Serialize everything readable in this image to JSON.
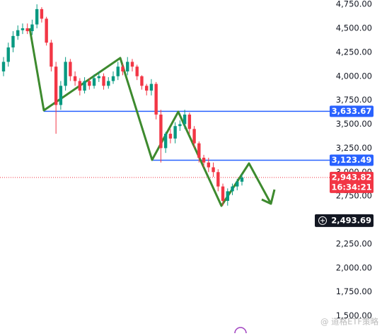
{
  "chart_data": {
    "type": "candlestick",
    "ylim": [
      1320,
      4795
    ],
    "yticks": [
      {
        "value": 1500,
        "label": "1,500.00"
      },
      {
        "value": 1750,
        "label": "1,750.00"
      },
      {
        "value": 2000,
        "label": "2,000.00"
      },
      {
        "value": 2250,
        "label": "2,250.00"
      },
      {
        "value": 2500,
        "label": "2,500.00"
      },
      {
        "value": 2750,
        "label": "2,750.00"
      },
      {
        "value": 3000,
        "label": "3,000.00"
      },
      {
        "value": 3250,
        "label": "3,250.00"
      },
      {
        "value": 3500,
        "label": "3,500.00"
      },
      {
        "value": 3750,
        "label": "3,750.00"
      },
      {
        "value": 4000,
        "label": "4,000.00"
      },
      {
        "value": 4250,
        "label": "4,250.00"
      },
      {
        "value": 4500,
        "label": "4,500.00"
      },
      {
        "value": 4750,
        "label": "4,750.00"
      }
    ],
    "up_color": "#089981",
    "down_color": "#f23645",
    "open": [
      4050,
      4150,
      4300,
      4420,
      4480,
      4500,
      4470,
      4540,
      4700,
      4600,
      4350,
      4100,
      3700,
      3900,
      4150,
      4000,
      3950,
      3850,
      3950,
      3900,
      3980,
      4000,
      3900,
      3950,
      4000,
      4100,
      4050,
      4150,
      4100,
      4000,
      3900,
      3850,
      3920,
      3600,
      3250,
      3400,
      3350,
      3480,
      3500,
      3600,
      3450,
      3300,
      3150,
      3100,
      3050,
      3000,
      2850,
      2700,
      2800,
      2850,
      2900
    ],
    "high": [
      4200,
      4350,
      4470,
      4530,
      4550,
      4550,
      4590,
      4750,
      4720,
      4620,
      4380,
      4150,
      3950,
      4200,
      4180,
      4050,
      3980,
      3990,
      3980,
      4020,
      4050,
      4030,
      3990,
      4050,
      4150,
      4130,
      4200,
      4180,
      4120,
      4010,
      3920,
      3970,
      3940,
      3650,
      3420,
      3450,
      3520,
      3540,
      3650,
      3620,
      3480,
      3320,
      3180,
      3150,
      3100,
      3030,
      2880,
      2830,
      2880,
      2930,
      2980
    ],
    "low": [
      4000,
      4100,
      4250,
      4380,
      4440,
      4440,
      4430,
      4500,
      4560,
      4320,
      4050,
      3400,
      3650,
      3850,
      3950,
      3900,
      3800,
      3820,
      3860,
      3870,
      3940,
      3860,
      3870,
      3920,
      3960,
      4010,
      4010,
      4050,
      3960,
      3860,
      3800,
      3800,
      3550,
      3100,
      3200,
      3300,
      3300,
      3430,
      3450,
      3400,
      3250,
      3100,
      3050,
      3000,
      2950,
      2800,
      2650,
      2650,
      2760,
      2810,
      2860
    ],
    "close": [
      4150,
      4300,
      4420,
      4480,
      4500,
      4470,
      4540,
      4700,
      4600,
      4350,
      4100,
      3700,
      3900,
      4150,
      4000,
      3950,
      3850,
      3950,
      3900,
      3980,
      4000,
      3900,
      3950,
      4000,
      4100,
      4050,
      4150,
      4100,
      4000,
      3900,
      3850,
      3920,
      3600,
      3250,
      3400,
      3350,
      3480,
      3500,
      3600,
      3450,
      3300,
      3150,
      3100,
      3050,
      3000,
      2850,
      2700,
      2800,
      2850,
      2900,
      2943.82
    ],
    "levels": [
      {
        "value": 3633.67,
        "label": "3,633.67",
        "color": "#2962ff"
      },
      {
        "value": 3123.49,
        "label": "3,123.49",
        "color": "#2962ff"
      }
    ],
    "last_price": {
      "value": 2943.82,
      "label": "2,943.82",
      "countdown": "16:34:21",
      "color": "#f23645"
    },
    "marker_price": {
      "value": 2493.69,
      "label": "2,493.69"
    },
    "watermark": "@ 道格ETF策略"
  }
}
